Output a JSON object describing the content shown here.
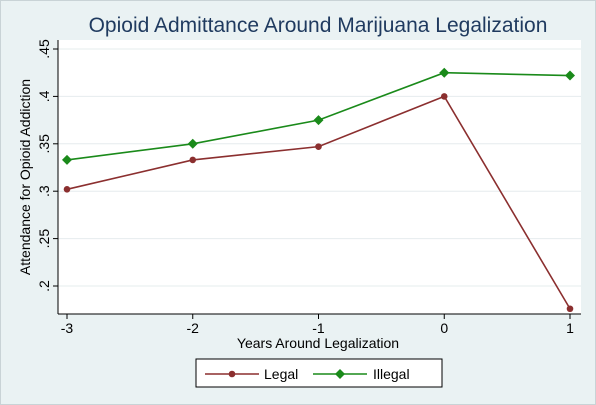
{
  "chart_data": {
    "type": "line",
    "title": "Opioid Admittance Around Marijuana Legalization",
    "xlabel": "Years Around Legalization",
    "ylabel": "Attendance for Opioid Addiction",
    "x": [
      -3,
      -2,
      -1,
      0,
      1
    ],
    "x_tick_labels": [
      "-3",
      "-2",
      "-1",
      "0",
      "1"
    ],
    "y_ticks": [
      0.2,
      0.25,
      0.3,
      0.35,
      0.4,
      0.45
    ],
    "y_tick_labels": [
      ".2",
      ".25",
      ".3",
      ".35",
      ".4",
      ".45"
    ],
    "xlim": [
      -3,
      1
    ],
    "ylim": [
      0.17,
      0.46
    ],
    "grid": true,
    "legend_position": "bottom",
    "series": [
      {
        "name": "Legal",
        "values": [
          0.302,
          0.333,
          0.347,
          0.4,
          0.176
        ],
        "color": "#8b2f2f",
        "marker": "circle"
      },
      {
        "name": "Illegal",
        "values": [
          0.333,
          0.35,
          0.375,
          0.425,
          0.422
        ],
        "color": "#1a8a1a",
        "marker": "diamond"
      }
    ]
  }
}
